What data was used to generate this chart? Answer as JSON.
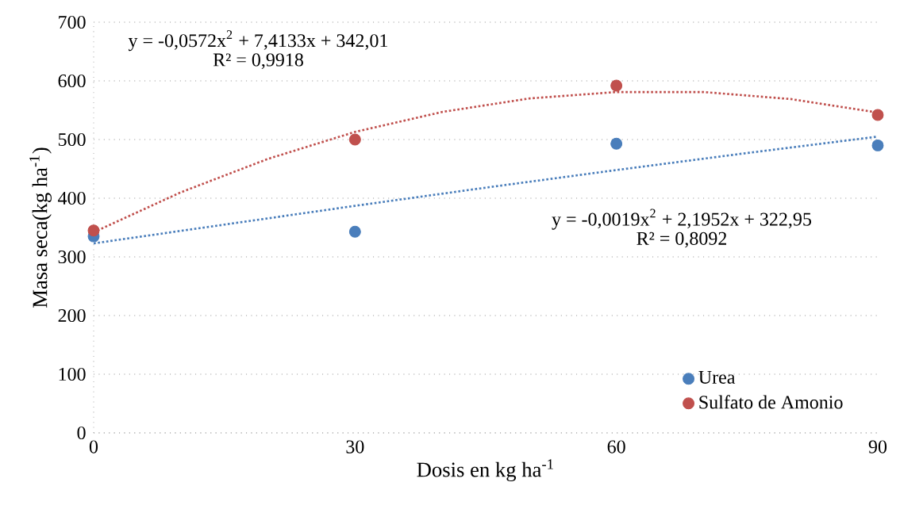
{
  "chart_data": {
    "type": "scatter",
    "xlabel": "Dosis en kg ha$^{-1}$",
    "ylabel": "Masa seca(kg ha$^{-1}$)",
    "xlim": [
      0,
      90
    ],
    "ylim": [
      0,
      700
    ],
    "xticks": [
      0,
      30,
      60,
      90
    ],
    "yticks": [
      0,
      100,
      200,
      300,
      400,
      500,
      600,
      700
    ],
    "grid": "y",
    "legend": "bottom right",
    "marker": "circle",
    "annotations": [
      "y = -0,0572x$^{2}$  + 7,4133x  + 342,01",
      "R² = 0,9918",
      "y = -0,0019x$^{2}$  + 2,1952x  + 322,95",
      "R² = 0,8092"
    ],
    "series": [
      {
        "name": "Urea",
        "color": "#4a7ebb",
        "x": [
          0,
          30,
          60,
          90
        ],
        "values": [
          335,
          343,
          493,
          490
        ]
      },
      {
        "name": "Sulfato de Amonio",
        "color": "#c0504d",
        "x": [
          0,
          30,
          60,
          90
        ],
        "values": [
          345,
          500,
          592,
          542
        ]
      },
      {
        "type": "line",
        "line_style": "dotted",
        "marker": "none",
        "color": "#c0504d",
        "x": [
          0,
          10,
          20,
          30,
          40,
          50,
          60,
          70,
          80,
          90
        ],
        "values": [
          342,
          410,
          467,
          513,
          547,
          570,
          581,
          581,
          569,
          546
        ]
      },
      {
        "type": "line",
        "line_style": "dotted",
        "marker": "none",
        "color": "#4a7ebb",
        "x": [
          0,
          15,
          30,
          45,
          60,
          75,
          90
        ],
        "values": [
          323,
          355,
          387,
          418,
          448,
          477,
          505
        ]
      }
    ]
  }
}
